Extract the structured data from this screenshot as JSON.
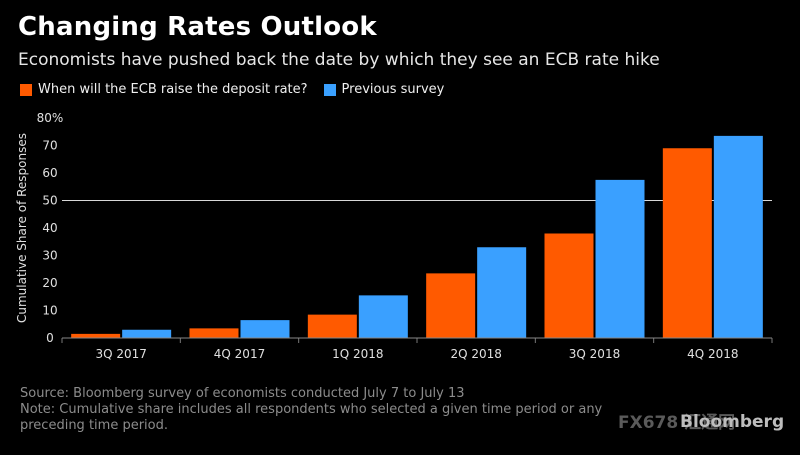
{
  "title": "Changing Rates Outlook",
  "subtitle": "Economists have pushed back the date by which they see an ECB rate hike",
  "legend": [
    {
      "label": "When will the ECB raise the deposit rate?",
      "color": "#ff5a00"
    },
    {
      "label": "Previous survey",
      "color": "#3aa0ff"
    }
  ],
  "footnote": {
    "source": "Source: Bloomberg survey of economists conducted July 7 to July 13",
    "note_line1": "Note: Cumulative share includes all respondents who selected a given time period or any",
    "note_line2": "preceding time period."
  },
  "watermark": "FX678 汇通网",
  "brand": "Bloomberg",
  "chart_data": {
    "type": "bar",
    "categories": [
      "3Q 2017",
      "4Q 2017",
      "1Q 2018",
      "2Q 2018",
      "3Q 2018",
      "4Q 2018"
    ],
    "series": [
      {
        "name": "When will the ECB raise the deposit rate?",
        "color": "#ff5a00",
        "values": [
          1.5,
          3.5,
          8.5,
          23.5,
          38,
          69
        ]
      },
      {
        "name": "Previous survey",
        "color": "#3aa0ff",
        "values": [
          3,
          6.5,
          15.5,
          33,
          57.5,
          73.5
        ]
      }
    ],
    "ylabel": "Cumulative Share of Responses",
    "ylim": [
      0,
      80
    ],
    "yticks": [
      "0",
      "10",
      "20",
      "30",
      "40",
      "50",
      "60",
      "70",
      "80%"
    ],
    "reference_line": 50
  }
}
